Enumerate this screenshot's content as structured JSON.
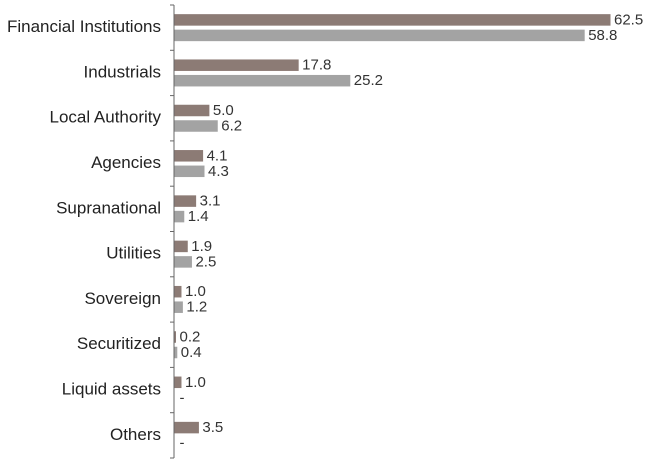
{
  "chart_data": {
    "type": "bar",
    "orientation": "horizontal",
    "title": "",
    "xlabel": "",
    "ylabel": "",
    "xlim": [
      0,
      62.5
    ],
    "grid": false,
    "legend": "none",
    "categories": [
      "Financial Institutions",
      "Industrials",
      "Local Authority",
      "Agencies",
      "Supranational",
      "Utilities",
      "Sovereign",
      "Securitized",
      "Liquid assets",
      "Others"
    ],
    "series": [
      {
        "color": "#8c7b75",
        "values": [
          62.5,
          17.8,
          5.0,
          4.1,
          3.1,
          1.9,
          1.0,
          0.2,
          1.0,
          3.5
        ],
        "labels": [
          "62.5",
          "17.8",
          "5.0",
          "4.1",
          "3.1",
          "1.9",
          "1.0",
          "0.2",
          "1.0",
          "3.5"
        ]
      },
      {
        "color": "#a3a3a3",
        "values": [
          58.8,
          25.2,
          6.2,
          4.3,
          1.4,
          2.5,
          1.2,
          0.4,
          null,
          null
        ],
        "labels": [
          "58.8",
          "25.2",
          "6.2",
          "4.3",
          "1.4",
          "2.5",
          "1.2",
          "0.4",
          "-",
          "-"
        ]
      }
    ]
  }
}
